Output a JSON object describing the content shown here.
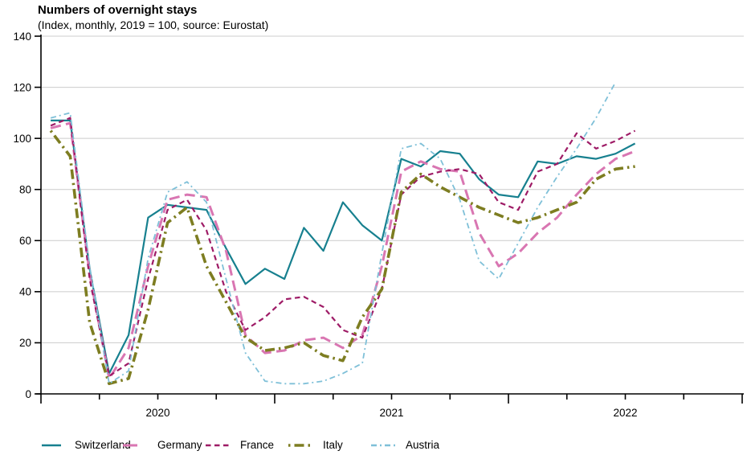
{
  "header": {
    "title": "Numbers of overnight stays",
    "subtitle": "(Index, monthly, 2019 = 100, source: Eurostat)"
  },
  "chart_data": {
    "type": "line",
    "title": "Numbers of overnight stays",
    "subtitle": "(Index, monthly, 2019 = 100, source: Eurostat)",
    "x_start_month": "2020-01",
    "x_total_months_on_axis": 36,
    "x_tick_every_months": 3,
    "year_labels": [
      "2020",
      "2021",
      "2022"
    ],
    "ylim": [
      0,
      140
    ],
    "y_ticks": [
      0,
      20,
      40,
      60,
      80,
      100,
      120,
      140
    ],
    "grid": true,
    "legend_position": "bottom",
    "series": [
      {
        "name": "Switzerland",
        "color": "#17808f",
        "dash": "solid",
        "width": 2.2,
        "values": [
          107,
          107,
          49,
          8,
          23,
          69,
          74,
          73,
          72,
          57,
          43,
          49,
          45,
          65,
          56,
          75,
          66,
          60,
          92,
          89,
          95,
          94,
          84,
          78,
          77,
          91,
          90,
          93,
          92,
          94,
          98
        ]
      },
      {
        "name": "Germany",
        "color": "#d976b2",
        "dash": "13 6.5",
        "width": 3,
        "values": [
          104,
          106,
          47,
          6,
          18,
          50,
          76,
          78,
          77,
          56,
          23,
          16,
          17,
          21,
          22,
          18,
          23,
          50,
          87,
          91,
          88,
          87,
          63,
          50,
          55,
          63,
          69,
          78,
          86,
          92,
          95
        ]
      },
      {
        "name": "France",
        "color": "#9e1b66",
        "dash": "6.5 4.5",
        "width": 2.2,
        "values": [
          105,
          108,
          45,
          7,
          12,
          45,
          72,
          76,
          64,
          40,
          25,
          30,
          37,
          38,
          34,
          25,
          22,
          41,
          78,
          85,
          87,
          88,
          86,
          75,
          72,
          87,
          90,
          102,
          96,
          99,
          103
        ]
      },
      {
        "name": "Italy",
        "color": "#7d7d21",
        "dash": "2.5 5 12 5",
        "width": 3.6,
        "values": [
          103,
          93,
          28,
          4,
          6,
          33,
          67,
          73,
          50,
          36,
          22,
          17,
          18,
          20,
          15,
          13,
          30,
          41,
          79,
          86,
          81,
          77,
          73,
          70,
          67,
          69,
          72,
          75,
          84,
          88,
          89
        ]
      },
      {
        "name": "Austria",
        "color": "#7fc0d8",
        "dash": "7 4 2 4",
        "width": 1.8,
        "values": [
          108,
          110,
          50,
          4,
          9,
          53,
          79,
          83,
          75,
          45,
          16,
          5,
          4,
          4,
          5,
          8,
          12,
          55,
          96,
          98,
          92,
          76,
          52,
          45,
          59,
          73,
          85,
          96,
          108,
          122
        ]
      }
    ],
    "axis_color": "#000000",
    "grid_color": "#cccccc"
  }
}
